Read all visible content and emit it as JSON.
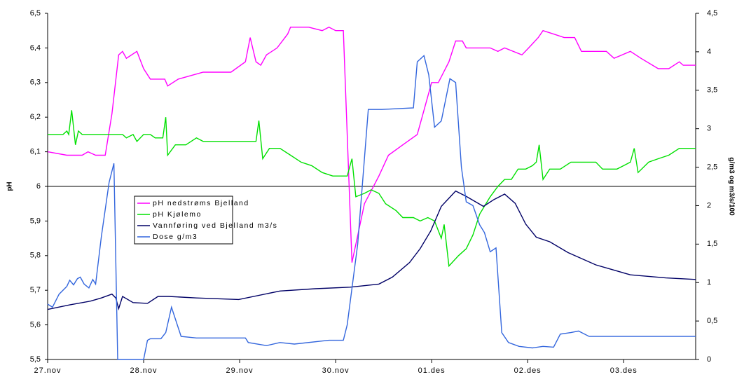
{
  "chart_data": {
    "type": "line",
    "y_label": "pH",
    "y2_label": "g/m3 og m3/s/100",
    "xlim": [
      0,
      6.75
    ],
    "xticks": [
      {
        "value": 0,
        "label": "27.nov"
      },
      {
        "value": 1,
        "label": "28.nov"
      },
      {
        "value": 2,
        "label": "29.nov"
      },
      {
        "value": 3,
        "label": "30.nov"
      },
      {
        "value": 4,
        "label": "01.des"
      },
      {
        "value": 5,
        "label": "02.des"
      },
      {
        "value": 6,
        "label": "03.des"
      }
    ],
    "ylim": [
      5.5,
      6.5
    ],
    "yticks": [
      {
        "value": 5.5,
        "label": "5,5"
      },
      {
        "value": 5.6,
        "label": "5,6"
      },
      {
        "value": 5.7,
        "label": "5,7"
      },
      {
        "value": 5.8,
        "label": "5,8"
      },
      {
        "value": 5.9,
        "label": "5,9"
      },
      6,
      {
        "value": 6.1,
        "label": "6,1"
      },
      {
        "value": 6.2,
        "label": "6,2"
      },
      {
        "value": 6.3,
        "label": "6,3"
      },
      {
        "value": 6.4,
        "label": "6,4"
      },
      {
        "value": 6.5,
        "label": "6,5"
      }
    ],
    "y2lim": [
      0,
      4.5
    ],
    "y2ticks": [
      0,
      {
        "value": 0.5,
        "label": "0,5"
      },
      1,
      {
        "value": 1.5,
        "label": "1,5"
      },
      2,
      {
        "value": 2.5,
        "label": "2,5"
      },
      3,
      {
        "value": 3.5,
        "label": "3,5"
      },
      4,
      {
        "value": 4.5,
        "label": "4,5"
      }
    ],
    "hline": 6,
    "series": [
      {
        "name": "pH nedstrøms Bjelland",
        "color": "#ff00ff",
        "x": [
          0,
          0.2,
          0.36,
          0.42,
          0.5,
          0.6,
          0.67,
          0.74,
          0.78,
          0.82,
          0.93,
          1.0,
          1.07,
          1.22,
          1.25,
          1.36,
          1.62,
          1.91,
          2.06,
          2.11,
          2.17,
          2.22,
          2.28,
          2.39,
          2.5,
          2.53,
          2.72,
          2.86,
          2.93,
          3.0,
          3.08,
          3.17,
          3.3,
          3.45,
          3.55,
          3.7,
          3.85,
          3.92,
          4.0,
          4.07,
          4.18,
          4.25,
          4.32,
          4.36,
          4.61,
          4.69,
          4.76,
          4.94,
          5.01,
          5.11,
          5.16,
          5.27,
          5.38,
          5.49,
          5.56,
          5.82,
          5.9,
          6.07,
          6.18,
          6.36,
          6.47,
          6.58,
          6.62,
          6.75
        ],
        "values": [
          6.1,
          6.09,
          6.09,
          6.1,
          6.09,
          6.09,
          6.21,
          6.38,
          6.39,
          6.37,
          6.39,
          6.34,
          6.31,
          6.31,
          6.29,
          6.31,
          6.33,
          6.33,
          6.36,
          6.43,
          6.36,
          6.35,
          6.38,
          6.4,
          6.44,
          6.46,
          6.46,
          6.45,
          6.46,
          6.45,
          6.45,
          5.78,
          5.95,
          6.03,
          6.09,
          6.12,
          6.15,
          6.22,
          6.3,
          6.3,
          6.36,
          6.42,
          6.42,
          6.4,
          6.4,
          6.39,
          6.4,
          6.38,
          6.4,
          6.43,
          6.45,
          6.44,
          6.43,
          6.43,
          6.39,
          6.39,
          6.37,
          6.39,
          6.37,
          6.34,
          6.34,
          6.36,
          6.35,
          6.35
        ]
      },
      {
        "name": "pH Kjølemo",
        "color": "#00e000",
        "x": [
          0,
          0.16,
          0.2,
          0.22,
          0.25,
          0.29,
          0.32,
          0.36,
          0.78,
          0.82,
          0.89,
          0.93,
          1.0,
          1.07,
          1.12,
          1.2,
          1.23,
          1.25,
          1.33,
          1.44,
          1.55,
          1.62,
          2.17,
          2.2,
          2.24,
          2.31,
          2.42,
          2.53,
          2.64,
          2.75,
          2.86,
          2.97,
          3.12,
          3.17,
          3.21,
          3.3,
          3.37,
          3.45,
          3.52,
          3.63,
          3.7,
          3.81,
          3.88,
          3.96,
          4.03,
          4.1,
          4.13,
          4.18,
          4.28,
          4.36,
          4.43,
          4.5,
          4.61,
          4.69,
          4.76,
          4.83,
          4.9,
          4.98,
          5.05,
          5.09,
          5.12,
          5.16,
          5.23,
          5.34,
          5.45,
          5.71,
          5.78,
          5.93,
          6.0,
          6.07,
          6.11,
          6.15,
          6.26,
          6.36,
          6.47,
          6.58,
          6.75
        ],
        "values": [
          6.15,
          6.15,
          6.16,
          6.15,
          6.22,
          6.12,
          6.16,
          6.15,
          6.15,
          6.14,
          6.15,
          6.13,
          6.15,
          6.15,
          6.14,
          6.14,
          6.2,
          6.09,
          6.12,
          6.12,
          6.14,
          6.13,
          6.13,
          6.19,
          6.08,
          6.11,
          6.11,
          6.09,
          6.07,
          6.06,
          6.04,
          6.03,
          6.03,
          6.08,
          5.97,
          5.98,
          5.99,
          5.98,
          5.95,
          5.93,
          5.91,
          5.91,
          5.9,
          5.91,
          5.9,
          5.85,
          5.89,
          5.77,
          5.8,
          5.82,
          5.86,
          5.92,
          5.97,
          6.0,
          6.02,
          6.02,
          6.05,
          6.05,
          6.06,
          6.07,
          6.12,
          6.02,
          6.05,
          6.05,
          6.07,
          6.07,
          6.05,
          6.05,
          6.06,
          6.07,
          6.11,
          6.04,
          6.07,
          6.08,
          6.09,
          6.11,
          6.11
        ]
      },
      {
        "name": "Vannføring ved Bjelland m3/s",
        "color": "#000066",
        "axis": "y2",
        "x": [
          0,
          0.23,
          0.45,
          0.56,
          0.67,
          0.71,
          0.74,
          0.78,
          0.89,
          1.04,
          1.15,
          1.26,
          1.55,
          1.99,
          2.42,
          2.79,
          3.15,
          3.45,
          3.59,
          3.77,
          3.88,
          3.99,
          4.1,
          4.25,
          4.36,
          4.54,
          4.65,
          4.76,
          4.87,
          4.98,
          5.09,
          5.23,
          5.42,
          5.71,
          6.07,
          6.44,
          6.75
        ],
        "values": [
          0.65,
          0.71,
          0.76,
          0.8,
          0.85,
          0.8,
          0.66,
          0.82,
          0.74,
          0.73,
          0.82,
          0.82,
          0.8,
          0.78,
          0.89,
          0.92,
          0.94,
          0.98,
          1.07,
          1.26,
          1.44,
          1.67,
          1.99,
          2.19,
          2.12,
          1.99,
          2.08,
          2.15,
          2.03,
          1.76,
          1.59,
          1.53,
          1.39,
          1.23,
          1.1,
          1.06,
          1.04
        ]
      },
      {
        "name": "Dose g/m3",
        "color": "#3366dd",
        "axis": "y2",
        "x": [
          0,
          0.05,
          0.12,
          0.2,
          0.23,
          0.27,
          0.31,
          0.34,
          0.38,
          0.43,
          0.47,
          0.5,
          0.56,
          0.64,
          0.69,
          0.73,
          1.0,
          1.04,
          1.07,
          1.18,
          1.23,
          1.29,
          1.39,
          1.55,
          2.06,
          2.09,
          2.28,
          2.42,
          2.57,
          2.93,
          3.08,
          3.12,
          3.23,
          3.34,
          3.48,
          3.81,
          3.85,
          3.92,
          3.97,
          4.03,
          4.1,
          4.19,
          4.25,
          4.31,
          4.36,
          4.43,
          4.5,
          4.55,
          4.61,
          4.67,
          4.73,
          4.8,
          4.91,
          5.05,
          5.16,
          5.27,
          5.34,
          5.45,
          5.53,
          5.64,
          6.07,
          6.75
        ],
        "values": [
          0.72,
          0.68,
          0.85,
          0.95,
          1.03,
          0.97,
          1.05,
          1.07,
          0.98,
          0.93,
          1.04,
          0.98,
          1.6,
          2.3,
          2.55,
          0,
          0,
          0.25,
          0.27,
          0.27,
          0.35,
          0.68,
          0.3,
          0.28,
          0.28,
          0.22,
          0.18,
          0.22,
          0.2,
          0.25,
          0.25,
          0.45,
          1.5,
          3.25,
          3.25,
          3.27,
          3.87,
          3.95,
          3.7,
          3.02,
          3.1,
          3.65,
          3.6,
          2.5,
          2.05,
          2.0,
          1.75,
          1.65,
          1.4,
          1.45,
          0.35,
          0.22,
          0.17,
          0.15,
          0.17,
          0.16,
          0.33,
          0.35,
          0.37,
          0.3,
          0.3,
          0.3
        ]
      }
    ]
  }
}
